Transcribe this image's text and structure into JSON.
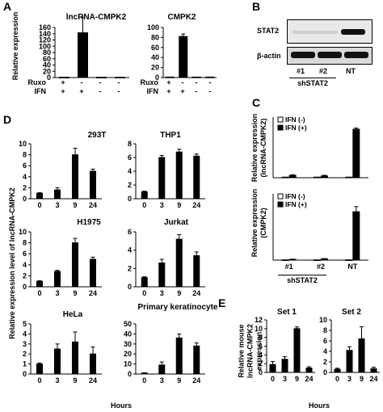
{
  "panels": {
    "A": "A",
    "B": "B",
    "C": "C",
    "D": "D",
    "E": "E"
  },
  "panel_a": {
    "row_labels": [
      "Ruxo",
      "IFN"
    ],
    "ruxo_signs": [
      "+",
      "-",
      "-",
      "-"
    ],
    "ifn_signs": [
      "+",
      "+",
      "-",
      "-"
    ]
  },
  "panel_b": {
    "protein_labels": [
      "STAT2",
      "β-actin"
    ],
    "lane_labels": [
      "#1",
      "#2",
      "NT"
    ],
    "group_label": "shSTAT2"
  },
  "panel_c": {
    "lane_labels": [
      "#1",
      "#2",
      "NT"
    ],
    "group_label": "shSTAT2"
  },
  "panel_d": {
    "ylabel": "Relative expression level of lncRNA-CMPK2",
    "xlabel": "Hours"
  },
  "panel_e": {
    "ylabel_lines": [
      "Relative mouse",
      "lncRNA-CMPK2",
      "expression"
    ],
    "xlabel": "Hours"
  },
  "chart_data": [
    {
      "id": "A1",
      "type": "bar",
      "title": "lncRNA-CMPK2",
      "ylabel": "Relative expression",
      "categories": [
        "Ruxo+ IFN+",
        "Ruxo- IFN+",
        "Ruxo- IFN-",
        "Ruxo- IFN-"
      ],
      "values": [
        1,
        143,
        1,
        1
      ],
      "errors": [
        0,
        50,
        0,
        0
      ],
      "ylim": [
        0,
        160
      ],
      "yticks": [
        0,
        20,
        40,
        60,
        80,
        100,
        120,
        140,
        160
      ]
    },
    {
      "id": "A2",
      "type": "bar",
      "title": "CMPK2",
      "ylabel": "",
      "categories": [
        "Ruxo+ IFN+",
        "Ruxo- IFN+",
        "Ruxo- IFN-",
        "Ruxo- IFN-"
      ],
      "values": [
        1,
        82,
        1,
        1
      ],
      "errors": [
        0,
        5,
        0,
        0
      ],
      "ylim": [
        0,
        100
      ],
      "yticks": [
        0,
        20,
        40,
        60,
        80,
        100
      ]
    },
    {
      "id": "C1",
      "type": "bar",
      "ylabel": "Relative expression (lncRNA-CMPK2)",
      "categories": [
        "#1",
        "#2",
        "NT"
      ],
      "series": [
        {
          "name": "IFN (-)",
          "values": [
            1,
            1,
            1
          ],
          "errors": [
            0,
            0,
            0
          ],
          "color": "#ffffff"
        },
        {
          "name": "IFN (+)",
          "values": [
            4,
            3,
            80
          ],
          "errors": [
            1,
            1,
            2
          ],
          "color": "#000000"
        }
      ],
      "ylim": [
        0,
        100
      ],
      "yticks": [],
      "legend": "top-left"
    },
    {
      "id": "C2",
      "type": "bar",
      "ylabel": "Relative expression (CMPK2)",
      "categories": [
        "#1",
        "#2",
        "NT"
      ],
      "series": [
        {
          "name": "IFN (-)",
          "values": [
            1,
            1,
            1
          ],
          "errors": [
            0,
            0,
            0
          ],
          "color": "#ffffff"
        },
        {
          "name": "IFN (+)",
          "values": [
            3,
            5,
            190
          ],
          "errors": [
            1,
            1,
            20
          ],
          "color": "#000000"
        }
      ],
      "ylim": [
        0,
        260
      ],
      "yticks": [],
      "legend": "top-left"
    },
    {
      "id": "D1",
      "type": "bar",
      "title": "293T",
      "categories": [
        "0",
        "3",
        "9",
        "24"
      ],
      "values": [
        1,
        1.6,
        8,
        5
      ],
      "errors": [
        0.1,
        0.4,
        1.2,
        0.4
      ],
      "ylim": [
        0,
        10
      ],
      "yticks": [
        0,
        2,
        4,
        6,
        8,
        10
      ]
    },
    {
      "id": "D2",
      "type": "bar",
      "title": "THP1",
      "categories": [
        "0",
        "3",
        "9",
        "24"
      ],
      "values": [
        1,
        6,
        6.8,
        6.2
      ],
      "errors": [
        0.1,
        0.3,
        0.4,
        0.3
      ],
      "ylim": [
        0,
        8
      ],
      "yticks": [
        0,
        2,
        4,
        6,
        8
      ]
    },
    {
      "id": "D3",
      "type": "bar",
      "title": "H1975",
      "categories": [
        "0",
        "3",
        "9",
        "24"
      ],
      "values": [
        1,
        2.8,
        8,
        5
      ],
      "errors": [
        0.1,
        0.2,
        0.8,
        0.4
      ],
      "ylim": [
        0,
        10
      ],
      "yticks": [
        0,
        2,
        4,
        6,
        8,
        10
      ]
    },
    {
      "id": "D4",
      "type": "bar",
      "title": "Jurkat",
      "categories": [
        "0",
        "3",
        "9",
        "24"
      ],
      "values": [
        1,
        2.6,
        5.2,
        3.4
      ],
      "errors": [
        0.1,
        0.4,
        0.5,
        0.4
      ],
      "ylim": [
        0,
        6
      ],
      "yticks": [
        0,
        2,
        4,
        6
      ]
    },
    {
      "id": "D5",
      "type": "bar",
      "title": "HeLa",
      "categories": [
        "0",
        "3",
        "9",
        "24"
      ],
      "values": [
        1,
        2.5,
        3.2,
        2
      ],
      "errors": [
        0.1,
        0.5,
        1,
        0.7
      ],
      "ylim": [
        0,
        5
      ],
      "yticks": [
        0,
        1,
        2,
        3,
        4,
        5
      ]
    },
    {
      "id": "D6",
      "type": "bar",
      "title": "Primary keratinocyte",
      "categories": [
        "0",
        "3",
        "9",
        "24"
      ],
      "values": [
        1,
        9,
        36,
        28
      ],
      "errors": [
        0.3,
        3,
        4,
        3
      ],
      "ylim": [
        0,
        50
      ],
      "yticks": [
        0,
        10,
        20,
        30,
        40,
        50
      ]
    },
    {
      "id": "E1",
      "type": "bar",
      "title": "Set 1",
      "categories": [
        "0",
        "3",
        "9",
        "24"
      ],
      "values": [
        1.8,
        3,
        10,
        1
      ],
      "errors": [
        0.7,
        0.6,
        0.4,
        0.3
      ],
      "ylim": [
        0,
        12
      ],
      "yticks": [
        0,
        2,
        4,
        6,
        8,
        10,
        12
      ]
    },
    {
      "id": "E2",
      "type": "bar",
      "title": "Set 2",
      "categories": [
        "0",
        "3",
        "9",
        "24"
      ],
      "values": [
        0.6,
        4.2,
        6.4,
        0.7
      ],
      "errors": [
        0.2,
        0.7,
        2.3,
        0.3
      ],
      "ylim": [
        0,
        10
      ],
      "yticks": [
        0,
        2,
        4,
        6,
        8,
        10
      ]
    }
  ]
}
